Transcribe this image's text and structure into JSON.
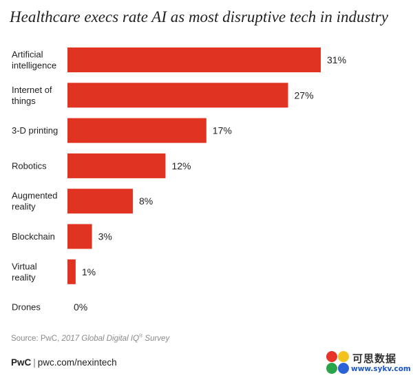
{
  "title": "Healthcare execs rate AI as most disruptive tech in industry",
  "chart_data": {
    "type": "bar",
    "orientation": "horizontal",
    "title": "Healthcare execs rate AI as most disruptive tech in industry",
    "categories": [
      [
        "Artificial",
        "intelligence"
      ],
      [
        "Internet of",
        "things"
      ],
      [
        "3-D printing"
      ],
      [
        "Robotics"
      ],
      [
        "Augmented",
        "reality"
      ],
      [
        "Blockchain"
      ],
      [
        "Virtual",
        "reality"
      ],
      [
        "Drones"
      ]
    ],
    "values": [
      31,
      27,
      17,
      12,
      8,
      3,
      1,
      0
    ],
    "value_labels": [
      "31%",
      "27%",
      "17%",
      "12%",
      "8%",
      "3%",
      "1%",
      "0%"
    ],
    "bar_color": "#e03322",
    "xlim": [
      0,
      31
    ],
    "grid": false,
    "legend": false
  },
  "source": {
    "prefix": "Source: PwC,",
    "report": "2017 Global Digital IQ",
    "reg": "®",
    "suffix": "Survey"
  },
  "footer": {
    "brand": "PwC",
    "separator": "|",
    "url": "pwc.com/nexintech"
  },
  "watermark": {
    "cn_text": "可思数据",
    "url": "www.sykv.com",
    "colors": [
      "#e8332a",
      "#f4c21c",
      "#2aa44a",
      "#2b62d6"
    ]
  }
}
